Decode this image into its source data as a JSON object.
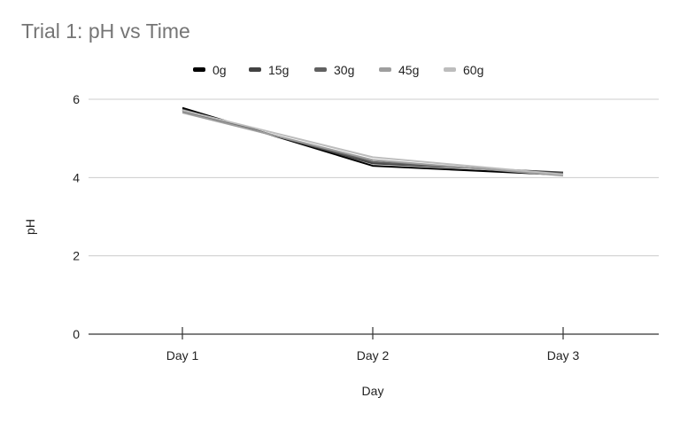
{
  "chart_data": {
    "type": "line",
    "title": "Trial 1: pH vs Time",
    "xlabel": "Day",
    "ylabel": "pH",
    "categories": [
      "Day 1",
      "Day 2",
      "Day 3"
    ],
    "ylim": [
      0,
      6
    ],
    "yticks": [
      0,
      2,
      4,
      6
    ],
    "grid": true,
    "legend_position": "top",
    "series": [
      {
        "name": "0g",
        "values": [
          5.78,
          4.3,
          4.07
        ],
        "color": "#000000"
      },
      {
        "name": "15g",
        "values": [
          5.74,
          4.36,
          4.13
        ],
        "color": "#424242"
      },
      {
        "name": "30g",
        "values": [
          5.7,
          4.4,
          4.1
        ],
        "color": "#616161"
      },
      {
        "name": "45g",
        "values": [
          5.66,
          4.45,
          4.05
        ],
        "color": "#9e9e9e"
      },
      {
        "name": "60g",
        "values": [
          5.72,
          4.52,
          4.08
        ],
        "color": "#bdbdbd"
      }
    ]
  }
}
